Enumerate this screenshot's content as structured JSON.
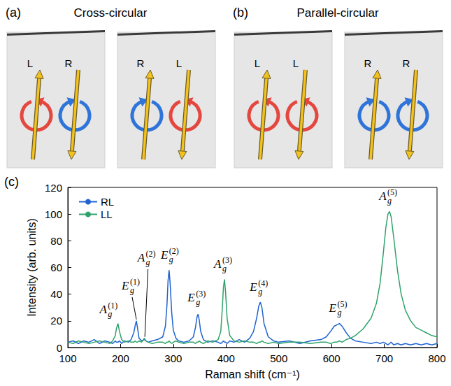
{
  "figure": {
    "panels": [
      {
        "letter": "(a)",
        "title": "Cross-circular",
        "configurations": [
          [
            "L",
            "R"
          ],
          [
            "R",
            "L"
          ]
        ]
      },
      {
        "letter": "(b)",
        "title": "Parallel-circular",
        "configurations": [
          [
            "L",
            "L"
          ],
          [
            "R",
            "R"
          ]
        ]
      }
    ],
    "chart_letter": "(c)"
  },
  "chart_data": {
    "type": "line",
    "xlabel": "Raman shift (cm⁻¹)",
    "ylabel": "Intensity (arb. units)",
    "x": [
      100,
      110,
      120,
      130,
      140,
      150,
      160,
      170,
      180,
      185,
      190,
      192,
      195,
      198,
      202,
      207,
      215,
      220,
      225,
      228,
      230,
      232,
      235,
      240,
      245,
      248,
      252,
      260,
      270,
      280,
      285,
      288,
      290,
      292,
      294,
      297,
      300,
      305,
      310,
      320,
      330,
      338,
      342,
      345,
      347,
      349,
      352,
      357,
      365,
      375,
      385,
      390,
      393,
      395,
      397,
      399,
      402,
      407,
      415,
      425,
      435,
      445,
      452,
      458,
      462,
      465,
      468,
      472,
      480,
      490,
      500,
      520,
      540,
      560,
      580,
      590,
      598,
      605,
      610,
      615,
      620,
      628,
      636,
      645,
      660,
      675,
      685,
      692,
      698,
      703,
      707,
      710,
      713,
      718,
      725,
      732,
      740,
      750,
      760,
      770,
      780,
      790,
      800
    ],
    "series": [
      {
        "name": "RL",
        "color": "#1f63d0",
        "values": [
          4,
          5,
          3,
          5,
          4,
          6,
          3,
          5,
          4,
          3,
          5,
          4,
          4,
          5,
          3,
          5,
          4,
          6,
          11,
          17,
          20,
          15,
          7,
          5,
          6,
          5,
          4,
          5,
          6,
          8,
          16,
          32,
          50,
          58,
          48,
          26,
          13,
          7,
          5,
          4,
          5,
          8,
          15,
          23,
          25,
          21,
          12,
          6,
          4,
          5,
          4,
          3,
          4,
          5,
          4,
          4,
          3,
          5,
          4,
          6,
          4,
          7,
          12,
          22,
          31,
          34,
          30,
          18,
          8,
          5,
          4,
          5,
          3,
          5,
          6,
          8,
          12,
          16,
          17,
          18,
          16,
          11,
          7,
          5,
          4,
          3,
          4,
          3,
          4,
          3,
          2,
          3,
          4,
          2,
          3,
          2,
          3,
          2,
          3,
          2,
          3,
          2,
          3
        ]
      },
      {
        "name": "LL",
        "color": "#2fa36b",
        "values": [
          4,
          3,
          5,
          4,
          3,
          4,
          5,
          4,
          3,
          5,
          9,
          14,
          18,
          12,
          6,
          4,
          5,
          4,
          4,
          5,
          4,
          4,
          5,
          4,
          7,
          5,
          4,
          3,
          4,
          4,
          3,
          4,
          4,
          5,
          4,
          3,
          4,
          5,
          4,
          3,
          4,
          4,
          3,
          4,
          4,
          5,
          4,
          3,
          5,
          4,
          6,
          12,
          30,
          45,
          51,
          42,
          22,
          9,
          5,
          4,
          5,
          4,
          4,
          3,
          4,
          4,
          5,
          4,
          3,
          4,
          3,
          4,
          4,
          3,
          4,
          4,
          3,
          4,
          4,
          5,
          4,
          6,
          7,
          9,
          14,
          22,
          33,
          48,
          70,
          90,
          100,
          102,
          98,
          82,
          58,
          40,
          28,
          20,
          15,
          13,
          11,
          9,
          8
        ]
      }
    ],
    "xlim": [
      100,
      800
    ],
    "xticks": [
      100,
      200,
      300,
      400,
      500,
      600,
      700,
      800
    ],
    "ylim": [
      0,
      120
    ],
    "yticks": [
      0,
      20,
      40,
      60,
      80,
      100,
      120
    ],
    "grid": false,
    "legend": "upper left",
    "annotations": [
      {
        "base": "A",
        "sub": "g",
        "sup": "(1)",
        "x": 180,
        "y": 24
      },
      {
        "base": "E",
        "sub": "g",
        "sup": "(1)",
        "x": 222,
        "y": 42,
        "target": [
          230,
          21
        ]
      },
      {
        "base": "A",
        "sub": "g",
        "sup": "(2)",
        "x": 252,
        "y": 63,
        "target": [
          246,
          8
        ]
      },
      {
        "base": "E",
        "sub": "g",
        "sup": "(2)",
        "x": 296,
        "y": 65
      },
      {
        "base": "E",
        "sub": "g",
        "sup": "(3)",
        "x": 347,
        "y": 33
      },
      {
        "base": "A",
        "sub": "g",
        "sup": "(3)",
        "x": 397,
        "y": 58
      },
      {
        "base": "E",
        "sub": "g",
        "sup": "(4)",
        "x": 465,
        "y": 41
      },
      {
        "base": "E",
        "sub": "g",
        "sup": "(5)",
        "x": 615,
        "y": 25
      },
      {
        "base": "A",
        "sub": "g",
        "sup": "(5)",
        "x": 710,
        "y": 109
      }
    ]
  }
}
